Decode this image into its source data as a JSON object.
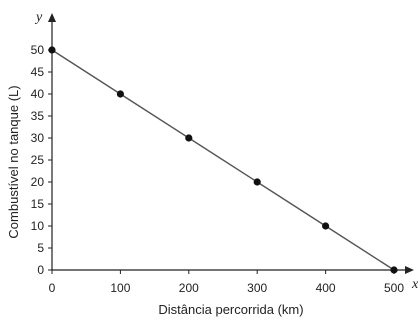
{
  "chart_data": {
    "type": "line",
    "title": "",
    "xlabel": "Distância percorrida (km)",
    "ylabel": "Combustível no tanque (L)",
    "x_axis_letter": "x",
    "y_axis_letter": "y",
    "xlim": [
      0,
      500
    ],
    "ylim": [
      0,
      50
    ],
    "x_ticks": [
      0,
      100,
      200,
      300,
      400,
      500
    ],
    "y_ticks": [
      0,
      5,
      10,
      15,
      20,
      25,
      30,
      35,
      40,
      45,
      50
    ],
    "x_tick_labels": [
      "0",
      "100",
      "200",
      "300",
      "400",
      "500"
    ],
    "y_tick_labels": [
      "0",
      "5",
      "10",
      "15",
      "20",
      "25",
      "30",
      "35",
      "40",
      "45",
      "50"
    ],
    "grid": false,
    "legend": "none",
    "series": [
      {
        "x": [
          0,
          100,
          200,
          300,
          400,
          500
        ],
        "y": [
          50,
          40,
          30,
          20,
          10,
          0
        ],
        "color": "#555555",
        "marker_color": "#111111"
      }
    ]
  }
}
